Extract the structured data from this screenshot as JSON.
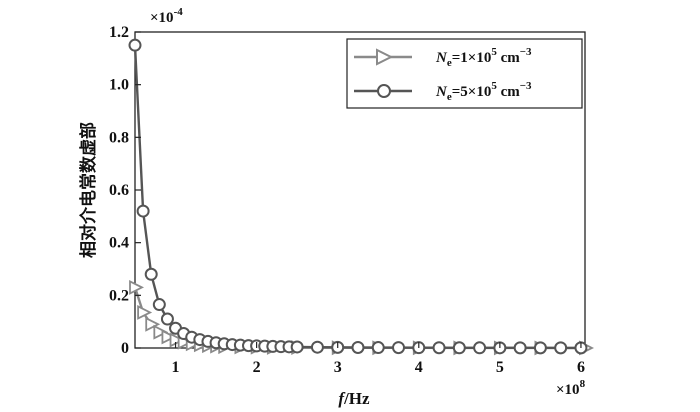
{
  "chart_data": {
    "type": "line",
    "title": "",
    "xlabel_italic": "f",
    "xlabel_unit": "/Hz",
    "ylabel": "相对介电常数虚部",
    "x_multiplier": "×10",
    "x_multiplier_exp": "8",
    "y_multiplier": "×10",
    "y_multiplier_exp": "-4",
    "xlim": [
      0.5,
      6.05
    ],
    "ylim": [
      0,
      1.2
    ],
    "x_ticks": [
      1,
      2,
      3,
      4,
      5,
      6
    ],
    "y_ticks": [
      0,
      0.2,
      0.4,
      0.6,
      0.8,
      1.0,
      1.2
    ],
    "y_tick_labels": [
      "0",
      "0.2",
      "0.4",
      "0.6",
      "0.8",
      "1.0",
      "1.2"
    ],
    "grid": false,
    "legend_position": "top-right",
    "series": [
      {
        "name_symbol": "N",
        "name_sub": "e",
        "name_rest": "=1×10",
        "name_exp": "5",
        "name_unit": " cm",
        "name_unit_exp": "−3",
        "marker": "triangle-right",
        "color": "#8a8a8a",
        "x": [
          0.5,
          0.6,
          0.7,
          0.8,
          0.9,
          1.0,
          1.1,
          1.2,
          1.3,
          1.4,
          1.5,
          1.6,
          1.8,
          2.0,
          2.2,
          2.5,
          3.0,
          3.5,
          4.0,
          4.5,
          5.0,
          5.5,
          6.05
        ],
        "y": [
          0.23,
          0.135,
          0.09,
          0.06,
          0.042,
          0.03,
          0.022,
          0.016,
          0.012,
          0.009,
          0.007,
          0.005,
          0.004,
          0.003,
          0.002,
          0.0015,
          0.001,
          0.0008,
          0.0006,
          0.0005,
          0.0004,
          0.0003,
          0.0002
        ]
      },
      {
        "name_symbol": "N",
        "name_sub": "e",
        "name_rest": "=5×10",
        "name_exp": "5",
        "name_unit": " cm",
        "name_unit_exp": "−3",
        "marker": "circle",
        "color": "#555555",
        "x": [
          0.5,
          0.6,
          0.7,
          0.8,
          0.9,
          1.0,
          1.1,
          1.2,
          1.3,
          1.4,
          1.5,
          1.6,
          1.7,
          1.8,
          1.9,
          2.0,
          2.1,
          2.2,
          2.3,
          2.4,
          2.5,
          2.75,
          3.0,
          3.25,
          3.5,
          3.75,
          4.0,
          4.25,
          4.5,
          4.75,
          5.0,
          5.25,
          5.5,
          5.75,
          6.0
        ],
        "y": [
          1.15,
          0.52,
          0.28,
          0.165,
          0.11,
          0.075,
          0.055,
          0.041,
          0.032,
          0.025,
          0.02,
          0.016,
          0.013,
          0.011,
          0.009,
          0.008,
          0.007,
          0.006,
          0.005,
          0.0045,
          0.004,
          0.003,
          0.0025,
          0.002,
          0.0017,
          0.0015,
          0.0012,
          0.001,
          0.0009,
          0.0008,
          0.0007,
          0.0006,
          0.0006,
          0.0005,
          0.0005
        ]
      }
    ]
  }
}
